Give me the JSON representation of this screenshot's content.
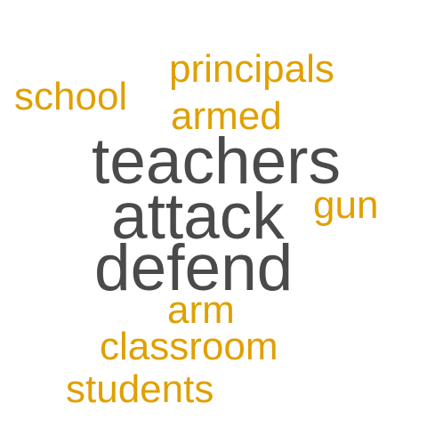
{
  "colors": {
    "primary_gray": "#4a4a4a",
    "accent_gold": "#e0a000",
    "background": "#ffffff"
  },
  "words": {
    "principals": "principals",
    "school": "school",
    "armed": "armed",
    "teachers": "teachers",
    "attack": "attack",
    "gun": "gun",
    "defend": "defend",
    "arm": "arm",
    "classroom": "classroom",
    "students": "students"
  }
}
